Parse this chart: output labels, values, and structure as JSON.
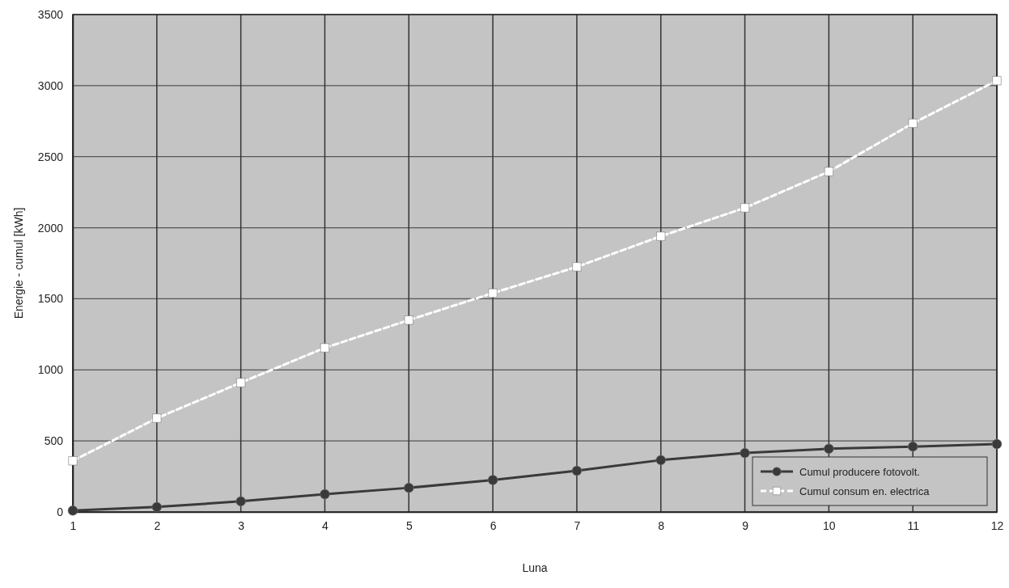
{
  "chart_data": {
    "type": "line",
    "xlabel": "Luna",
    "ylabel": "Energie - cumul [kWh]",
    "x": [
      1,
      2,
      3,
      4,
      5,
      6,
      7,
      8,
      9,
      10,
      11,
      12
    ],
    "xlim": [
      1,
      12
    ],
    "xticks": [
      1,
      2,
      3,
      4,
      5,
      6,
      7,
      8,
      9,
      10,
      11,
      12
    ],
    "ylim": [
      0,
      3500
    ],
    "yticks": [
      0,
      500,
      1000,
      1500,
      2000,
      2500,
      3000,
      3500
    ],
    "grid": true,
    "legend": "bottom right",
    "series": [
      {
        "name": "Cumul producere fotovolt.",
        "color": "#3a3a3a",
        "marker": "circle",
        "line_style": "solid",
        "values": [
          10,
          35,
          75,
          125,
          170,
          225,
          290,
          365,
          415,
          445,
          460,
          478
        ]
      },
      {
        "name": "Cumul consum en. electrica",
        "color": "#ffffff",
        "marker": "square",
        "line_style": "dashed",
        "values": [
          360,
          660,
          910,
          1155,
          1350,
          1540,
          1725,
          1940,
          2140,
          2395,
          2735,
          3035
        ]
      }
    ]
  }
}
